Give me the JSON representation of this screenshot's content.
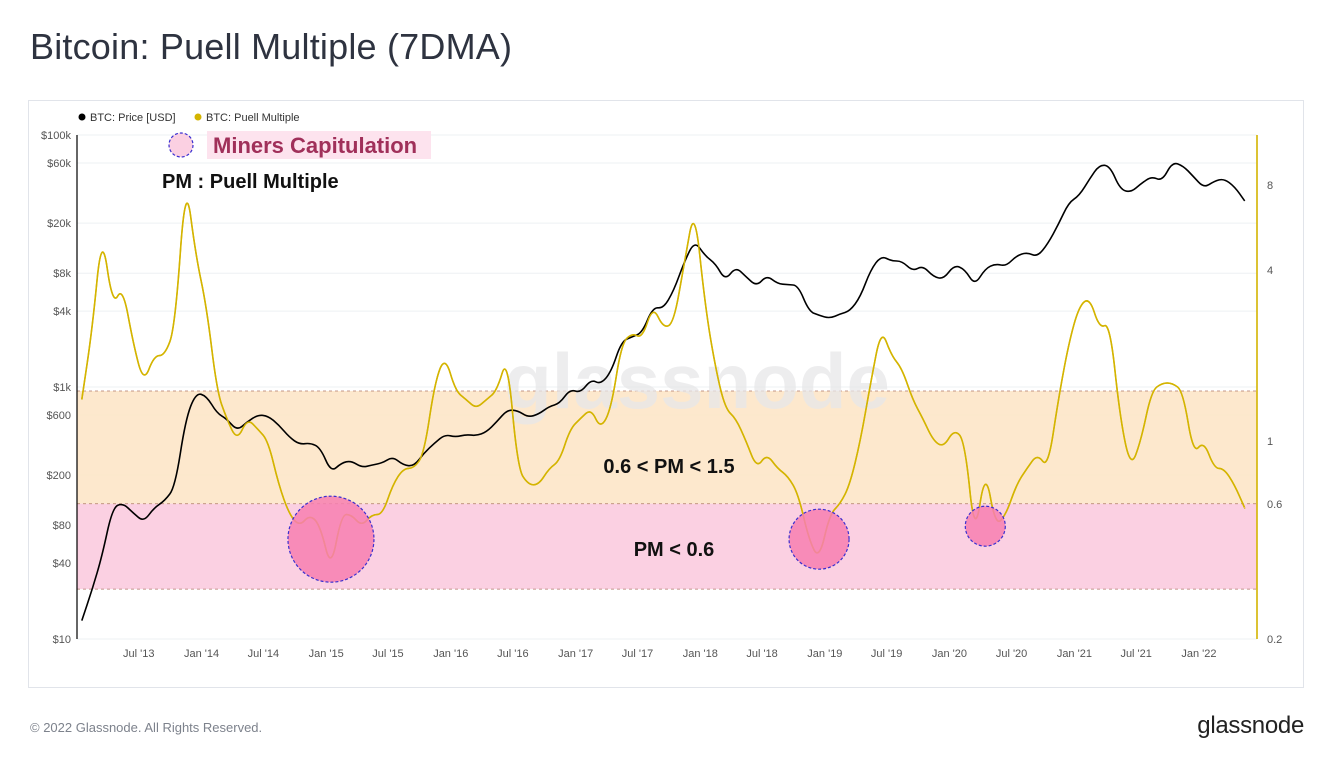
{
  "page": {
    "title": "Bitcoin: Puell Multiple (7DMA)",
    "copyright": "© 2022 Glassnode. All Rights Reserved.",
    "brand": "glassnode"
  },
  "colors": {
    "price": "#000000",
    "puell": "#d4b400",
    "band_mid": "#fde6c8",
    "band_low": "#fbcde0",
    "capitulation_fill": "#f77fb0",
    "capitulation_border": "#3a2fd0",
    "annotation_text": "#a0305a",
    "right_axis": "#d4b400"
  },
  "chart_data": {
    "type": "line",
    "title": "Bitcoin: Puell Multiple (7DMA)",
    "legend": {
      "placement": "top-left",
      "items": [
        {
          "name": "BTC: Price [USD]",
          "color": "#000000"
        },
        {
          "name": "BTC: Puell Multiple",
          "color": "#d4b400"
        }
      ]
    },
    "x_ticks": [
      "Jul '13",
      "Jan '14",
      "Jul '14",
      "Jan '15",
      "Jul '15",
      "Jan '16",
      "Jul '16",
      "Jan '17",
      "Jul '17",
      "Jan '18",
      "Jul '18",
      "Jan '19",
      "Jul '19",
      "Jan '20",
      "Jul '20",
      "Jan '21",
      "Jul '21",
      "Jan '22"
    ],
    "left_axis": {
      "scale": "log",
      "ticks": [
        "$10",
        "$40",
        "$80",
        "$200",
        "$600",
        "$1k",
        "$4k",
        "$8k",
        "$20k",
        "$60k",
        "$100k"
      ],
      "range": [
        10,
        100000
      ]
    },
    "right_axis": {
      "scale": "log",
      "ticks": [
        "0.2",
        "0.6",
        "1",
        "4",
        "8"
      ],
      "range": [
        0.2,
        12
      ]
    },
    "bands": [
      {
        "label": "0.6 < PM < 1.5",
        "from": 0.6,
        "to": 1.5
      },
      {
        "label": "PM < 0.6",
        "from": 0.3,
        "to": 0.6
      }
    ],
    "annotations": {
      "legend_title": "Miners Capitulation",
      "pm_definition": "PM : Puell Multiple",
      "capitulation_events": [
        {
          "date": "2015-01",
          "pm_center": 0.45
        },
        {
          "date": "2018-12",
          "pm_center": 0.45
        },
        {
          "date": "2020-04",
          "pm_center": 0.5
        }
      ]
    },
    "series": [
      {
        "name": "BTC: Price [USD]",
        "axis": "left",
        "x": [
          "2013-01",
          "2013-02",
          "2013-03",
          "2013-04",
          "2013-05",
          "2013-06",
          "2013-07",
          "2013-08",
          "2013-09",
          "2013-10",
          "2013-11",
          "2013-12",
          "2014-01",
          "2014-02",
          "2014-03",
          "2014-04",
          "2014-05",
          "2014-06",
          "2014-07",
          "2014-08",
          "2014-09",
          "2014-10",
          "2014-11",
          "2014-12",
          "2015-01",
          "2015-02",
          "2015-03",
          "2015-04",
          "2015-05",
          "2015-06",
          "2015-07",
          "2015-08",
          "2015-09",
          "2015-10",
          "2015-11",
          "2015-12",
          "2016-01",
          "2016-02",
          "2016-03",
          "2016-04",
          "2016-05",
          "2016-06",
          "2016-07",
          "2016-08",
          "2016-09",
          "2016-10",
          "2016-11",
          "2016-12",
          "2017-01",
          "2017-02",
          "2017-03",
          "2017-04",
          "2017-05",
          "2017-06",
          "2017-07",
          "2017-08",
          "2017-09",
          "2017-10",
          "2017-11",
          "2017-12",
          "2018-01",
          "2018-02",
          "2018-03",
          "2018-04",
          "2018-05",
          "2018-06",
          "2018-07",
          "2018-08",
          "2018-09",
          "2018-10",
          "2018-11",
          "2018-12",
          "2019-01",
          "2019-02",
          "2019-03",
          "2019-04",
          "2019-05",
          "2019-06",
          "2019-07",
          "2019-08",
          "2019-09",
          "2019-10",
          "2019-11",
          "2019-12",
          "2020-01",
          "2020-02",
          "2020-03",
          "2020-04",
          "2020-05",
          "2020-06",
          "2020-07",
          "2020-08",
          "2020-09",
          "2020-10",
          "2020-11",
          "2020-12",
          "2021-01",
          "2021-02",
          "2021-03",
          "2021-04",
          "2021-05",
          "2021-06",
          "2021-07",
          "2021-08",
          "2021-09",
          "2021-10",
          "2021-11",
          "2021-12",
          "2022-01",
          "2022-02",
          "2022-03",
          "2022-04",
          "2022-05"
        ],
        "values": [
          14,
          25,
          45,
          110,
          120,
          100,
          85,
          110,
          125,
          160,
          550,
          900,
          850,
          620,
          560,
          450,
          530,
          600,
          590,
          500,
          400,
          350,
          360,
          330,
          210,
          250,
          260,
          230,
          240,
          250,
          280,
          240,
          235,
          300,
          360,
          420,
          400,
          420,
          410,
          440,
          530,
          660,
          650,
          575,
          610,
          700,
          740,
          960,
          900,
          1150,
          1050,
          1320,
          2300,
          2500,
          2700,
          4300,
          4200,
          5800,
          9800,
          14500,
          11000,
          9500,
          7000,
          9000,
          7500,
          6300,
          7700,
          6600,
          6500,
          6400,
          4000,
          3700,
          3500,
          3800,
          4000,
          5200,
          8500,
          11000,
          10000,
          10000,
          8300,
          9200,
          7500,
          7200,
          9300,
          8600,
          6400,
          8700,
          9500,
          9100,
          11000,
          11700,
          10800,
          13700,
          19500,
          29000,
          33000,
          45000,
          58000,
          57000,
          37000,
          35000,
          41000,
          47000,
          43000,
          61000,
          57000,
          47000,
          38000,
          43000,
          45000,
          39000,
          30000
        ]
      },
      {
        "name": "BTC: Puell Multiple",
        "axis": "right",
        "x": [
          "2013-01",
          "2013-02",
          "2013-03",
          "2013-04",
          "2013-05",
          "2013-06",
          "2013-07",
          "2013-08",
          "2013-09",
          "2013-10",
          "2013-11",
          "2013-12",
          "2014-01",
          "2014-02",
          "2014-03",
          "2014-04",
          "2014-05",
          "2014-06",
          "2014-07",
          "2014-08",
          "2014-09",
          "2014-10",
          "2014-11",
          "2014-12",
          "2015-01",
          "2015-02",
          "2015-03",
          "2015-04",
          "2015-05",
          "2015-06",
          "2015-07",
          "2015-08",
          "2015-09",
          "2015-10",
          "2015-11",
          "2015-12",
          "2016-01",
          "2016-02",
          "2016-03",
          "2016-04",
          "2016-05",
          "2016-06",
          "2016-07",
          "2016-08",
          "2016-09",
          "2016-10",
          "2016-11",
          "2016-12",
          "2017-01",
          "2017-02",
          "2017-03",
          "2017-04",
          "2017-05",
          "2017-06",
          "2017-07",
          "2017-08",
          "2017-09",
          "2017-10",
          "2017-11",
          "2017-12",
          "2018-01",
          "2018-02",
          "2018-03",
          "2018-04",
          "2018-05",
          "2018-06",
          "2018-07",
          "2018-08",
          "2018-09",
          "2018-10",
          "2018-11",
          "2018-12",
          "2019-01",
          "2019-02",
          "2019-03",
          "2019-04",
          "2019-05",
          "2019-06",
          "2019-07",
          "2019-08",
          "2019-09",
          "2019-10",
          "2019-11",
          "2019-12",
          "2020-01",
          "2020-02",
          "2020-03",
          "2020-04",
          "2020-05",
          "2020-06",
          "2020-07",
          "2020-08",
          "2020-09",
          "2020-10",
          "2020-11",
          "2020-12",
          "2021-01",
          "2021-02",
          "2021-03",
          "2021-04",
          "2021-05",
          "2021-06",
          "2021-07",
          "2021-08",
          "2021-09",
          "2021-10",
          "2021-11",
          "2021-12",
          "2022-01",
          "2022-02",
          "2022-03",
          "2022-04",
          "2022-05"
        ],
        "values": [
          1.4,
          2.5,
          5.5,
          3.0,
          3.5,
          2.2,
          1.6,
          2.0,
          2.0,
          2.5,
          8.5,
          4.5,
          3.0,
          1.5,
          1.2,
          1.0,
          1.2,
          1.1,
          1.0,
          0.7,
          0.55,
          0.5,
          0.55,
          0.5,
          0.35,
          0.55,
          0.55,
          0.5,
          0.55,
          0.55,
          0.7,
          0.8,
          0.8,
          0.9,
          1.6,
          2.0,
          1.5,
          1.4,
          1.3,
          1.4,
          1.5,
          2.0,
          0.8,
          0.7,
          0.7,
          0.8,
          0.85,
          1.1,
          1.2,
          1.3,
          1.1,
          1.3,
          2.2,
          2.4,
          2.3,
          3.0,
          2.5,
          2.6,
          4.2,
          6.8,
          3.0,
          1.8,
          1.3,
          1.2,
          1.0,
          0.8,
          0.9,
          0.8,
          0.75,
          0.65,
          0.45,
          0.38,
          0.55,
          0.6,
          0.7,
          1.0,
          1.6,
          2.5,
          2.0,
          1.8,
          1.4,
          1.2,
          1.0,
          0.95,
          1.1,
          1.0,
          0.45,
          0.8,
          0.5,
          0.55,
          0.7,
          0.8,
          0.9,
          0.8,
          1.4,
          2.2,
          3.0,
          3.2,
          2.5,
          2.6,
          1.2,
          0.8,
          1.0,
          1.5,
          1.6,
          1.6,
          1.5,
          0.9,
          1.0,
          0.8,
          0.8,
          0.7,
          0.58
        ]
      }
    ]
  }
}
